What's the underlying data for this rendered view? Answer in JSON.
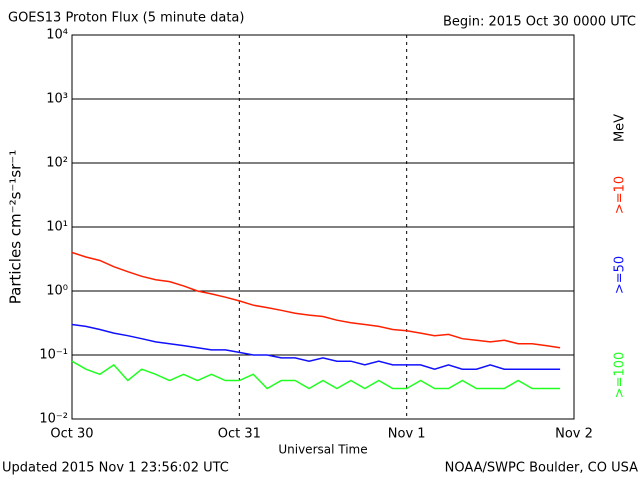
{
  "chart_data": {
    "type": "line",
    "title": "GOES13 Proton Flux (5 minute data)",
    "subtitle": "Begin: 2015 Oct 30 0000 UTC",
    "x_label": "Universal Time",
    "y_label": "Particles cm⁻²s⁻¹sr⁻¹",
    "legend_unit": "MeV",
    "footer_left": "Updated 2015 Nov  1 23:56:02 UTC",
    "footer_right": "NOAA/SWPC Boulder, CO USA",
    "log_scale": true,
    "grid": true,
    "x": [
      0,
      2,
      4,
      6,
      8,
      10,
      12,
      14,
      16,
      18,
      20,
      22,
      24,
      26,
      28,
      30,
      32,
      34,
      36,
      38,
      40,
      42,
      44,
      46,
      48,
      50,
      52,
      54,
      56,
      58,
      60,
      62,
      64,
      66,
      68,
      70
    ],
    "series": [
      {
        "name": ">=10",
        "color": "#ff2000",
        "values": [
          4.0,
          3.4,
          3.0,
          2.4,
          2.0,
          1.7,
          1.5,
          1.4,
          1.2,
          1.0,
          0.9,
          0.8,
          0.7,
          0.6,
          0.55,
          0.5,
          0.45,
          0.42,
          0.4,
          0.35,
          0.32,
          0.3,
          0.28,
          0.25,
          0.24,
          0.22,
          0.2,
          0.21,
          0.18,
          0.17,
          0.16,
          0.17,
          0.15,
          0.15,
          0.14,
          0.13
        ]
      },
      {
        "name": ">=50",
        "color": "#1010ff",
        "values": [
          0.3,
          0.28,
          0.25,
          0.22,
          0.2,
          0.18,
          0.16,
          0.15,
          0.14,
          0.13,
          0.12,
          0.12,
          0.11,
          0.1,
          0.1,
          0.09,
          0.09,
          0.08,
          0.09,
          0.08,
          0.08,
          0.07,
          0.08,
          0.07,
          0.07,
          0.07,
          0.06,
          0.07,
          0.06,
          0.06,
          0.07,
          0.06,
          0.06,
          0.06,
          0.06,
          0.06
        ]
      },
      {
        "name": ">=100",
        "color": "#20ff20",
        "values": [
          0.08,
          0.06,
          0.05,
          0.07,
          0.04,
          0.06,
          0.05,
          0.04,
          0.05,
          0.04,
          0.05,
          0.04,
          0.04,
          0.05,
          0.03,
          0.04,
          0.04,
          0.03,
          0.04,
          0.03,
          0.04,
          0.03,
          0.04,
          0.03,
          0.03,
          0.04,
          0.03,
          0.03,
          0.04,
          0.03,
          0.03,
          0.03,
          0.04,
          0.03,
          0.03,
          0.03
        ]
      }
    ],
    "xlim": [
      0,
      72
    ],
    "xticks": [
      {
        "value": 0,
        "label": "Oct 30"
      },
      {
        "value": 24,
        "label": "Oct 31"
      },
      {
        "value": 48,
        "label": "Nov 1"
      },
      {
        "value": 72,
        "label": "Nov 2"
      }
    ],
    "ylim": [
      0.01,
      10000
    ],
    "yticks": [
      {
        "value": 0.01,
        "label": "10⁻²"
      },
      {
        "value": 0.1,
        "label": "10⁻¹"
      },
      {
        "value": 1,
        "label": "10⁰"
      },
      {
        "value": 10,
        "label": "10¹"
      },
      {
        "value": 100,
        "label": "10²"
      },
      {
        "value": 1000,
        "label": "10³"
      },
      {
        "value": 10000,
        "label": "10⁴"
      }
    ]
  }
}
